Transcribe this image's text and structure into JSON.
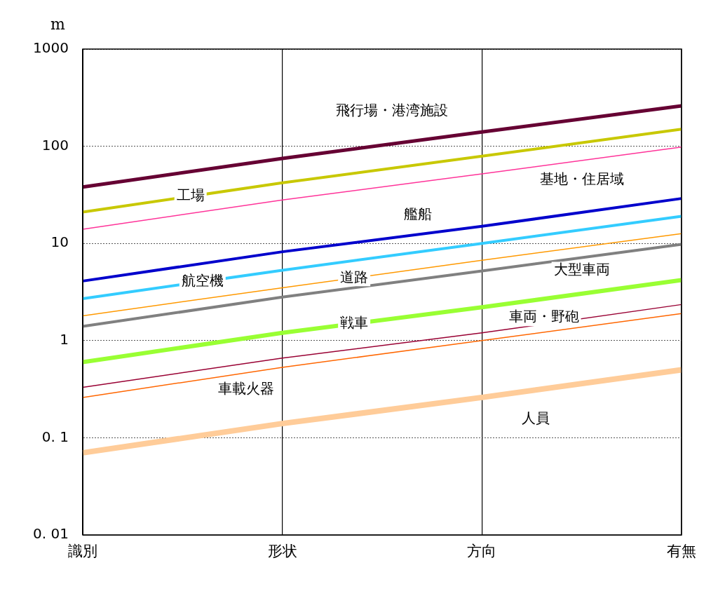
{
  "chart_data": {
    "type": "line",
    "ylabel": "m",
    "categories": [
      "識別",
      "形状",
      "方向",
      "有無"
    ],
    "log": "y",
    "ylim": [
      0.01,
      1000
    ],
    "yticks": [
      {
        "value": 0.01,
        "label": "0. 01"
      },
      {
        "value": 0.1,
        "label": "0. 1"
      },
      1,
      10,
      100,
      1000
    ],
    "grid": true,
    "legend": false,
    "marker": "none",
    "line_style": "solid",
    "series": [
      {
        "name": "飛行場・港湾施設",
        "color": "#660033",
        "values": [
          38,
          75,
          140,
          260
        ]
      },
      {
        "name": "工場",
        "color": "#c8c800",
        "values": [
          21,
          42,
          79,
          150
        ]
      },
      {
        "name": "基地・住居域",
        "color": "#ff3399",
        "values": [
          14,
          28,
          52,
          98
        ]
      },
      {
        "name": "艦船",
        "color": "#0000cc",
        "values": [
          4.1,
          8.2,
          15,
          29
        ]
      },
      {
        "name": "航空機",
        "color": "#33ccff",
        "values": [
          2.7,
          5.3,
          10,
          19
        ]
      },
      {
        "name": "道路",
        "color": "#ff9900",
        "values": [
          1.8,
          3.5,
          6.7,
          12.6
        ]
      },
      {
        "name": "大型車両",
        "color": "#808080",
        "values": [
          1.4,
          2.8,
          5.2,
          9.8
        ]
      },
      {
        "name": "戦車",
        "color": "#99ff33",
        "values": [
          0.6,
          1.2,
          2.2,
          4.2
        ]
      },
      {
        "name": "車両・野砲",
        "color": "#990033",
        "values": [
          0.33,
          0.66,
          1.2,
          2.35
        ]
      },
      {
        "name": "車載火器",
        "color": "#ff6600",
        "values": [
          0.26,
          0.53,
          1.0,
          1.9
        ]
      },
      {
        "name": "人員",
        "color": "#ffcc99",
        "values": [
          0.07,
          0.14,
          0.26,
          0.5
        ]
      }
    ]
  }
}
